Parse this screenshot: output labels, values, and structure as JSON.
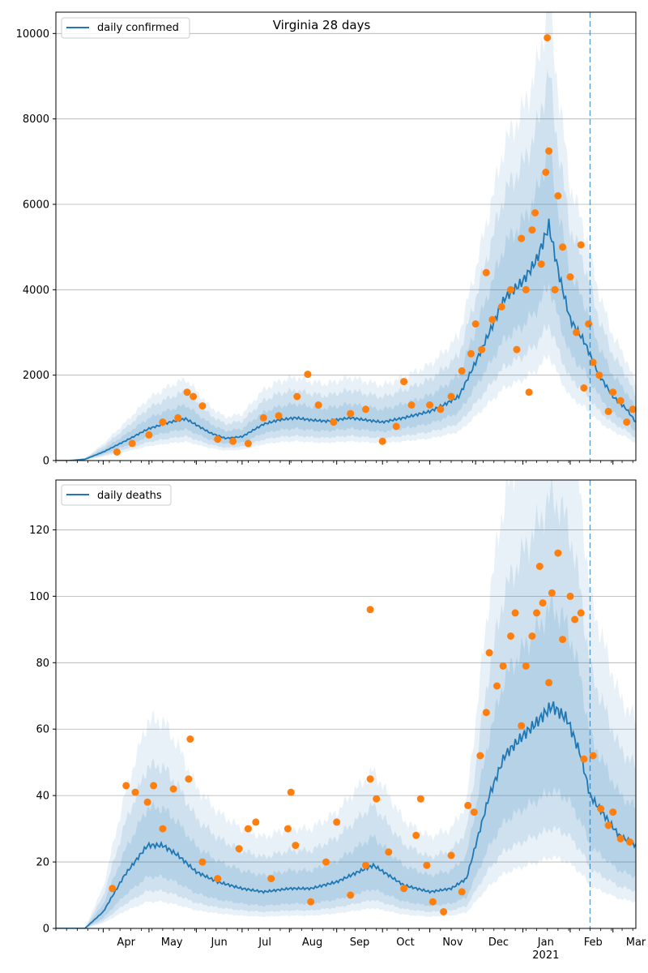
{
  "colors": {
    "line": "#1f77b4",
    "points": "#ff7f0e",
    "band": "#1f77b4",
    "grid": "#b0b0b0",
    "vline": "#1f77b4"
  },
  "chart_data": [
    {
      "type": "line",
      "title": "Virginia 28 days",
      "legend": {
        "label": "daily confirmed",
        "placement": "top-left"
      },
      "xlim": [
        "2020-03-01",
        "2021-03-16"
      ],
      "ylim": [
        0,
        10500
      ],
      "yticks": [
        0,
        2000,
        4000,
        6000,
        8000,
        10000
      ],
      "grid": "y",
      "vline": "2021-02-14",
      "line_knots": [
        [
          "2020-03-01",
          0
        ],
        [
          "2020-03-10",
          0
        ],
        [
          "2020-03-20",
          30
        ],
        [
          "2020-04-01",
          200
        ],
        [
          "2020-04-15",
          450
        ],
        [
          "2020-05-01",
          750
        ],
        [
          "2020-05-15",
          900
        ],
        [
          "2020-05-25",
          980
        ],
        [
          "2020-06-10",
          650
        ],
        [
          "2020-06-20",
          520
        ],
        [
          "2020-07-01",
          560
        ],
        [
          "2020-07-15",
          850
        ],
        [
          "2020-07-25",
          950
        ],
        [
          "2020-08-05",
          1000
        ],
        [
          "2020-08-15",
          950
        ],
        [
          "2020-08-25",
          920
        ],
        [
          "2020-09-10",
          1000
        ],
        [
          "2020-09-20",
          950
        ],
        [
          "2020-10-01",
          900
        ],
        [
          "2020-10-15",
          1000
        ],
        [
          "2020-11-01",
          1150
        ],
        [
          "2020-11-10",
          1300
        ],
        [
          "2020-11-20",
          1500
        ],
        [
          "2020-12-01",
          2300
        ],
        [
          "2020-12-10",
          3000
        ],
        [
          "2020-12-20",
          3800
        ],
        [
          "2021-01-01",
          4200
        ],
        [
          "2021-01-10",
          4700
        ],
        [
          "2021-01-18",
          5500
        ],
        [
          "2021-01-25",
          4300
        ],
        [
          "2021-02-01",
          3300
        ],
        [
          "2021-02-10",
          2800
        ],
        [
          "2021-02-20",
          2000
        ],
        [
          "2021-03-01",
          1500
        ],
        [
          "2021-03-10",
          1200
        ],
        [
          "2021-03-16",
          900
        ]
      ],
      "band_ratios": [
        [
          0.75,
          1.33
        ],
        [
          0.58,
          1.65
        ],
        [
          0.45,
          1.95
        ]
      ],
      "points": [
        [
          "2020-04-10",
          200
        ],
        [
          "2020-04-20",
          400
        ],
        [
          "2020-05-01",
          600
        ],
        [
          "2020-05-10",
          900
        ],
        [
          "2020-05-20",
          1000
        ],
        [
          "2020-05-26",
          1600
        ],
        [
          "2020-05-30",
          1500
        ],
        [
          "2020-06-05",
          1280
        ],
        [
          "2020-06-15",
          500
        ],
        [
          "2020-06-25",
          450
        ],
        [
          "2020-07-05",
          400
        ],
        [
          "2020-07-15",
          1000
        ],
        [
          "2020-07-25",
          1050
        ],
        [
          "2020-08-06",
          1500
        ],
        [
          "2020-08-13",
          2020
        ],
        [
          "2020-08-20",
          1300
        ],
        [
          "2020-08-30",
          900
        ],
        [
          "2020-09-10",
          1100
        ],
        [
          "2020-09-20",
          1200
        ],
        [
          "2020-10-01",
          450
        ],
        [
          "2020-10-10",
          800
        ],
        [
          "2020-10-15",
          1850
        ],
        [
          "2020-10-20",
          1300
        ],
        [
          "2020-11-01",
          1300
        ],
        [
          "2020-11-08",
          1200
        ],
        [
          "2020-11-15",
          1500
        ],
        [
          "2020-11-22",
          2100
        ],
        [
          "2020-11-28",
          2500
        ],
        [
          "2020-12-01",
          3200
        ],
        [
          "2020-12-05",
          2600
        ],
        [
          "2020-12-08",
          4400
        ],
        [
          "2020-12-12",
          3300
        ],
        [
          "2020-12-18",
          3600
        ],
        [
          "2020-12-24",
          4000
        ],
        [
          "2020-12-28",
          2600
        ],
        [
          "2020-12-31",
          5200
        ],
        [
          "2021-01-03",
          4000
        ],
        [
          "2021-01-05",
          1600
        ],
        [
          "2021-01-07",
          5400
        ],
        [
          "2021-01-09",
          5800
        ],
        [
          "2021-01-13",
          4600
        ],
        [
          "2021-01-16",
          6750
        ],
        [
          "2021-01-18",
          7250
        ],
        [
          "2021-01-17",
          9900
        ],
        [
          "2021-01-22",
          4000
        ],
        [
          "2021-01-24",
          6200
        ],
        [
          "2021-01-27",
          5000
        ],
        [
          "2021-02-01",
          4300
        ],
        [
          "2021-02-05",
          3000
        ],
        [
          "2021-02-08",
          5050
        ],
        [
          "2021-02-10",
          1700
        ],
        [
          "2021-02-13",
          3200
        ],
        [
          "2021-02-16",
          2300
        ],
        [
          "2021-02-20",
          2000
        ],
        [
          "2021-02-26",
          1150
        ],
        [
          "2021-03-01",
          1600
        ],
        [
          "2021-03-06",
          1400
        ],
        [
          "2021-03-10",
          900
        ],
        [
          "2021-03-14",
          1200
        ]
      ]
    },
    {
      "type": "line",
      "title": "",
      "legend": {
        "label": "daily deaths",
        "placement": "top-left"
      },
      "xlim": [
        "2020-03-01",
        "2021-03-16"
      ],
      "ylim": [
        0,
        135
      ],
      "yticks": [
        0,
        20,
        40,
        60,
        80,
        100,
        120
      ],
      "grid": "y",
      "vline": "2021-02-14",
      "xtick_labels": [
        [
          "2020-04-01",
          "Apr"
        ],
        [
          "2020-05-01",
          "May"
        ],
        [
          "2020-06-01",
          "Jun"
        ],
        [
          "2020-07-01",
          "Jul"
        ],
        [
          "2020-08-01",
          "Aug"
        ],
        [
          "2020-09-01",
          "Sep"
        ],
        [
          "2020-10-01",
          "Oct"
        ],
        [
          "2020-11-01",
          "Nov"
        ],
        [
          "2020-12-01",
          "Dec"
        ],
        [
          "2021-01-01",
          "Jan"
        ],
        [
          "2021-02-01",
          "Feb"
        ],
        [
          "2021-03-01",
          "Mar"
        ]
      ],
      "year_label": [
        "2021-01-01",
        "2021"
      ],
      "line_knots": [
        [
          "2020-03-01",
          0
        ],
        [
          "2020-03-20",
          0
        ],
        [
          "2020-04-01",
          5
        ],
        [
          "2020-04-15",
          16
        ],
        [
          "2020-04-30",
          25
        ],
        [
          "2020-05-10",
          25
        ],
        [
          "2020-05-20",
          22
        ],
        [
          "2020-06-01",
          17
        ],
        [
          "2020-06-15",
          14
        ],
        [
          "2020-07-01",
          12
        ],
        [
          "2020-07-15",
          11
        ],
        [
          "2020-08-01",
          12
        ],
        [
          "2020-08-15",
          12
        ],
        [
          "2020-09-01",
          14
        ],
        [
          "2020-09-15",
          17
        ],
        [
          "2020-09-25",
          19
        ],
        [
          "2020-10-05",
          16
        ],
        [
          "2020-10-15",
          13
        ],
        [
          "2020-11-01",
          11
        ],
        [
          "2020-11-15",
          12
        ],
        [
          "2020-11-25",
          15
        ],
        [
          "2020-12-01",
          25
        ],
        [
          "2020-12-10",
          40
        ],
        [
          "2020-12-20",
          52
        ],
        [
          "2021-01-01",
          58
        ],
        [
          "2021-01-10",
          62
        ],
        [
          "2021-01-20",
          67
        ],
        [
          "2021-01-30",
          63
        ],
        [
          "2021-02-08",
          52
        ],
        [
          "2021-02-14",
          40
        ],
        [
          "2021-02-25",
          33
        ],
        [
          "2021-03-05",
          28
        ],
        [
          "2021-03-16",
          25
        ]
      ],
      "band_ratios": [
        [
          0.62,
          1.45
        ],
        [
          0.45,
          1.95
        ],
        [
          0.32,
          2.5
        ]
      ],
      "points": [
        [
          "2020-04-07",
          12
        ],
        [
          "2020-04-16",
          43
        ],
        [
          "2020-04-22",
          41
        ],
        [
          "2020-04-30",
          38
        ],
        [
          "2020-05-04",
          43
        ],
        [
          "2020-05-10",
          30
        ],
        [
          "2020-05-17",
          42
        ],
        [
          "2020-05-27",
          45
        ],
        [
          "2020-05-28",
          57
        ],
        [
          "2020-06-05",
          20
        ],
        [
          "2020-06-15",
          15
        ],
        [
          "2020-06-29",
          24
        ],
        [
          "2020-07-05",
          30
        ],
        [
          "2020-07-10",
          32
        ],
        [
          "2020-07-20",
          15
        ],
        [
          "2020-07-31",
          30
        ],
        [
          "2020-08-02",
          41
        ],
        [
          "2020-08-05",
          25
        ],
        [
          "2020-08-15",
          8
        ],
        [
          "2020-08-25",
          20
        ],
        [
          "2020-09-01",
          32
        ],
        [
          "2020-09-10",
          10
        ],
        [
          "2020-09-20",
          19
        ],
        [
          "2020-09-23",
          45
        ],
        [
          "2020-09-23",
          96
        ],
        [
          "2020-09-27",
          39
        ],
        [
          "2020-10-05",
          23
        ],
        [
          "2020-10-15",
          12
        ],
        [
          "2020-10-23",
          28
        ],
        [
          "2020-10-26",
          39
        ],
        [
          "2020-10-30",
          19
        ],
        [
          "2020-11-03",
          8
        ],
        [
          "2020-11-10",
          5
        ],
        [
          "2020-11-15",
          22
        ],
        [
          "2020-11-22",
          11
        ],
        [
          "2020-11-26",
          37
        ],
        [
          "2020-11-30",
          35
        ],
        [
          "2020-12-04",
          52
        ],
        [
          "2020-12-08",
          65
        ],
        [
          "2020-12-10",
          83
        ],
        [
          "2020-12-15",
          73
        ],
        [
          "2020-12-19",
          79
        ],
        [
          "2020-12-24",
          88
        ],
        [
          "2020-12-27",
          95
        ],
        [
          "2020-12-31",
          61
        ],
        [
          "2021-01-03",
          79
        ],
        [
          "2021-01-07",
          88
        ],
        [
          "2021-01-10",
          95
        ],
        [
          "2021-01-12",
          109
        ],
        [
          "2021-01-14",
          98
        ],
        [
          "2021-01-18",
          74
        ],
        [
          "2021-01-20",
          101
        ],
        [
          "2021-01-24",
          113
        ],
        [
          "2021-01-27",
          87
        ],
        [
          "2021-02-01",
          100
        ],
        [
          "2021-02-04",
          93
        ],
        [
          "2021-02-08",
          95
        ],
        [
          "2021-02-10",
          51
        ],
        [
          "2021-02-16",
          52
        ],
        [
          "2021-02-21",
          36
        ],
        [
          "2021-02-26",
          31
        ],
        [
          "2021-03-01",
          35
        ],
        [
          "2021-03-06",
          27
        ],
        [
          "2021-03-12",
          26
        ]
      ]
    }
  ]
}
